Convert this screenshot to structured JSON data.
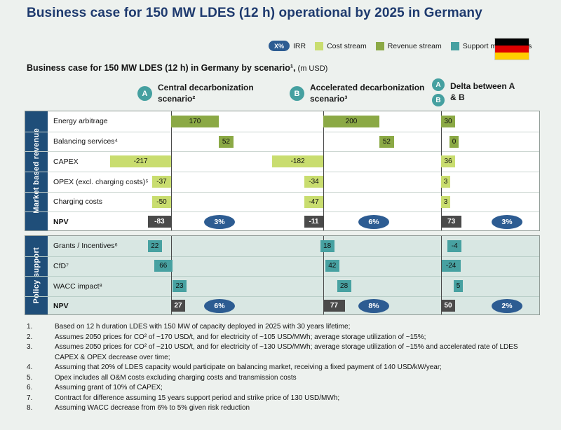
{
  "title": "Business case for 150 MW LDES (12 h) operational by 2025 in Germany",
  "subtitle": {
    "bold": "Business case for 150 MW LDES (12 h) in Germany by scenario¹,",
    "unit": " (m USD)"
  },
  "legend": {
    "irr_text": "X%",
    "items": [
      {
        "label": "IRR",
        "swatch": "irr"
      },
      {
        "label": "Cost stream",
        "swatch": "cost"
      },
      {
        "label": "Revenue stream",
        "swatch": "revenue"
      },
      {
        "label": "Support mechanisms",
        "swatch": "support"
      }
    ]
  },
  "flag": {
    "name": "Germany",
    "stripes": [
      "#000000",
      "#dd0000",
      "#ffce00"
    ]
  },
  "colors": {
    "revenue": "#8ba945",
    "cost": "#c9dd6f",
    "support": "#47a1a1",
    "npv": "#4a4a4a",
    "irr": "#2d5c92",
    "band": "#1f4e79",
    "badge": "#45a0a0",
    "title": "#1e3a6e"
  },
  "chart_data": {
    "type": "bar",
    "subtype": "waterfall by scenario",
    "unit": "m USD",
    "scenarios": [
      {
        "id": "A",
        "label": "Central decarbonization scenario²"
      },
      {
        "id": "B",
        "label": "Accelerated decarbonization scenario³"
      },
      {
        "id": "AB",
        "label": "Delta between A & B"
      }
    ],
    "sections": [
      {
        "name": "Market based revenue",
        "rows": [
          {
            "label": "Energy arbitrage",
            "stream": "revenue",
            "values": [
              170,
              200,
              30
            ]
          },
          {
            "label": "Balancing services⁴",
            "stream": "revenue",
            "stacked_after_prev": true,
            "values": [
              52,
              52,
              0
            ]
          },
          {
            "label": "CAPEX",
            "stream": "cost",
            "values": [
              -217,
              -182,
              36
            ]
          },
          {
            "label": "OPEX (excl. charging costs)⁵",
            "stream": "cost",
            "values": [
              -37,
              -34,
              3
            ]
          },
          {
            "label": "Charging costs",
            "stream": "cost",
            "values": [
              -50,
              -47,
              3
            ]
          },
          {
            "label": "NPV",
            "stream": "npv",
            "values": [
              -83,
              -11,
              73
            ],
            "irr": [
              "3%",
              "6%",
              "3%"
            ]
          }
        ]
      },
      {
        "name": "Policy support",
        "rows": [
          {
            "label": "Grants / Incentives⁶",
            "stream": "support",
            "values": [
              22,
              18,
              -4
            ]
          },
          {
            "label": "CfD⁷",
            "stream": "support",
            "values": [
              66,
              42,
              -24
            ]
          },
          {
            "label": "WACC impact⁸",
            "stream": "support",
            "values": [
              23,
              28,
              5
            ]
          },
          {
            "label": "NPV",
            "stream": "npv",
            "values": [
              27,
              77,
              50
            ],
            "irr": [
              "6%",
              "8%",
              "2%"
            ]
          }
        ]
      }
    ]
  },
  "footnotes": [
    "Based on 12 h duration LDES with 150 MW of capacity deployed in 2025 with 30 years lifetime;",
    "Assumes 2050 prices for CO² of ~170 USD/t, and for electricity of ~105 USD/MWh; average storage utilization of ~15%;",
    "Assumes 2050 prices for CO² of ~210 USD/t, and for electricity of ~130 USD/MWh; average storage utilization of ~15% and accelerated rate of LDES CAPEX & OPEX decrease over time;",
    "Assuming that 20% of LDES capacity would participate on balancing market, receiving a fixed payment of 140 USD/kW/year;",
    "Opex includes all O&M costs excluding charging costs and transmission costs",
    "Assuming grant of 10% of CAPEX;",
    "Contract for difference assuming 15 years support period and strike price of 130 USD/MWh;",
    "Assuming WACC decrease from 6% to 5% given risk reduction"
  ]
}
